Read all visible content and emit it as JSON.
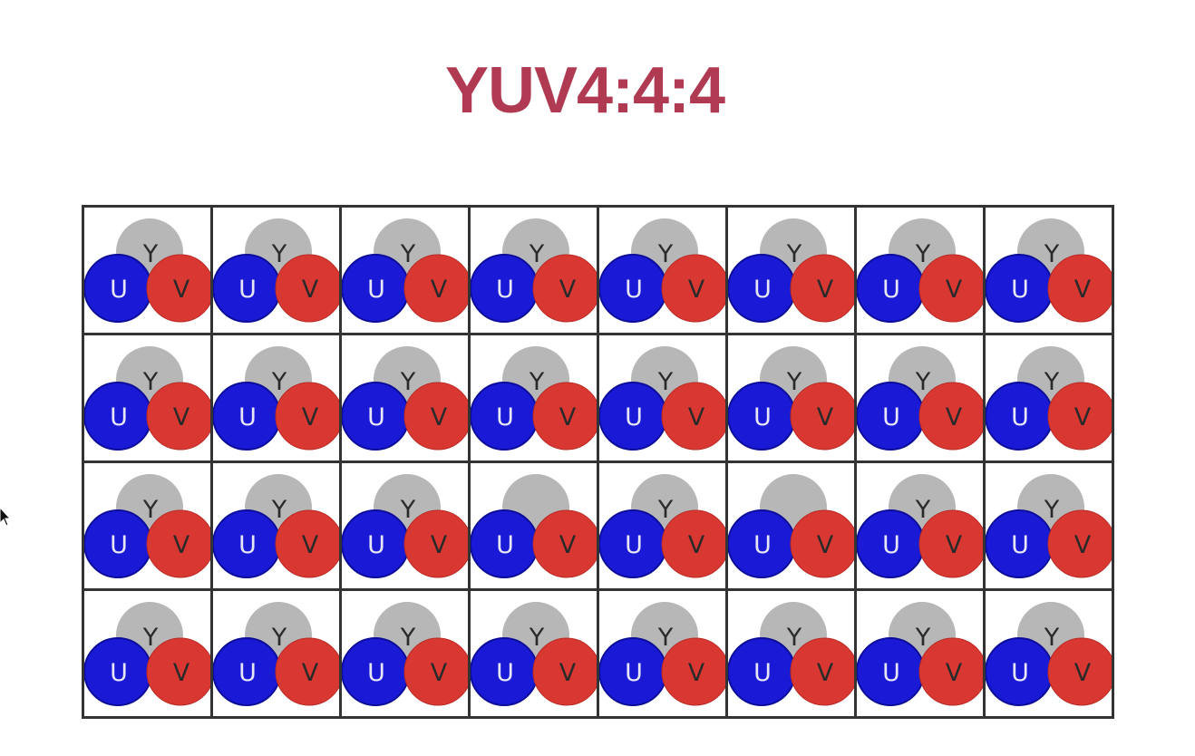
{
  "title": "YUV4:4:4",
  "colors": {
    "title": "#b03a52",
    "y": "#b7b7b7",
    "u": "#1a1ad6",
    "u_edge": "#0c0c9a",
    "v": "#d93832",
    "v_edge": "#b92a25",
    "grid_line": "#333333",
    "label": "#2a2a2a",
    "u_label": "#e6e6f7"
  },
  "labels": {
    "y": "Y",
    "u": "U",
    "v": "V"
  },
  "grid": {
    "rows": 4,
    "cols": 8,
    "cells": [
      [
        true,
        true,
        true,
        true,
        true,
        true,
        true,
        true
      ],
      [
        true,
        true,
        true,
        true,
        true,
        true,
        true,
        true
      ],
      [
        true,
        true,
        true,
        false,
        true,
        false,
        true,
        true
      ],
      [
        true,
        true,
        true,
        true,
        true,
        true,
        true,
        true
      ]
    ]
  }
}
